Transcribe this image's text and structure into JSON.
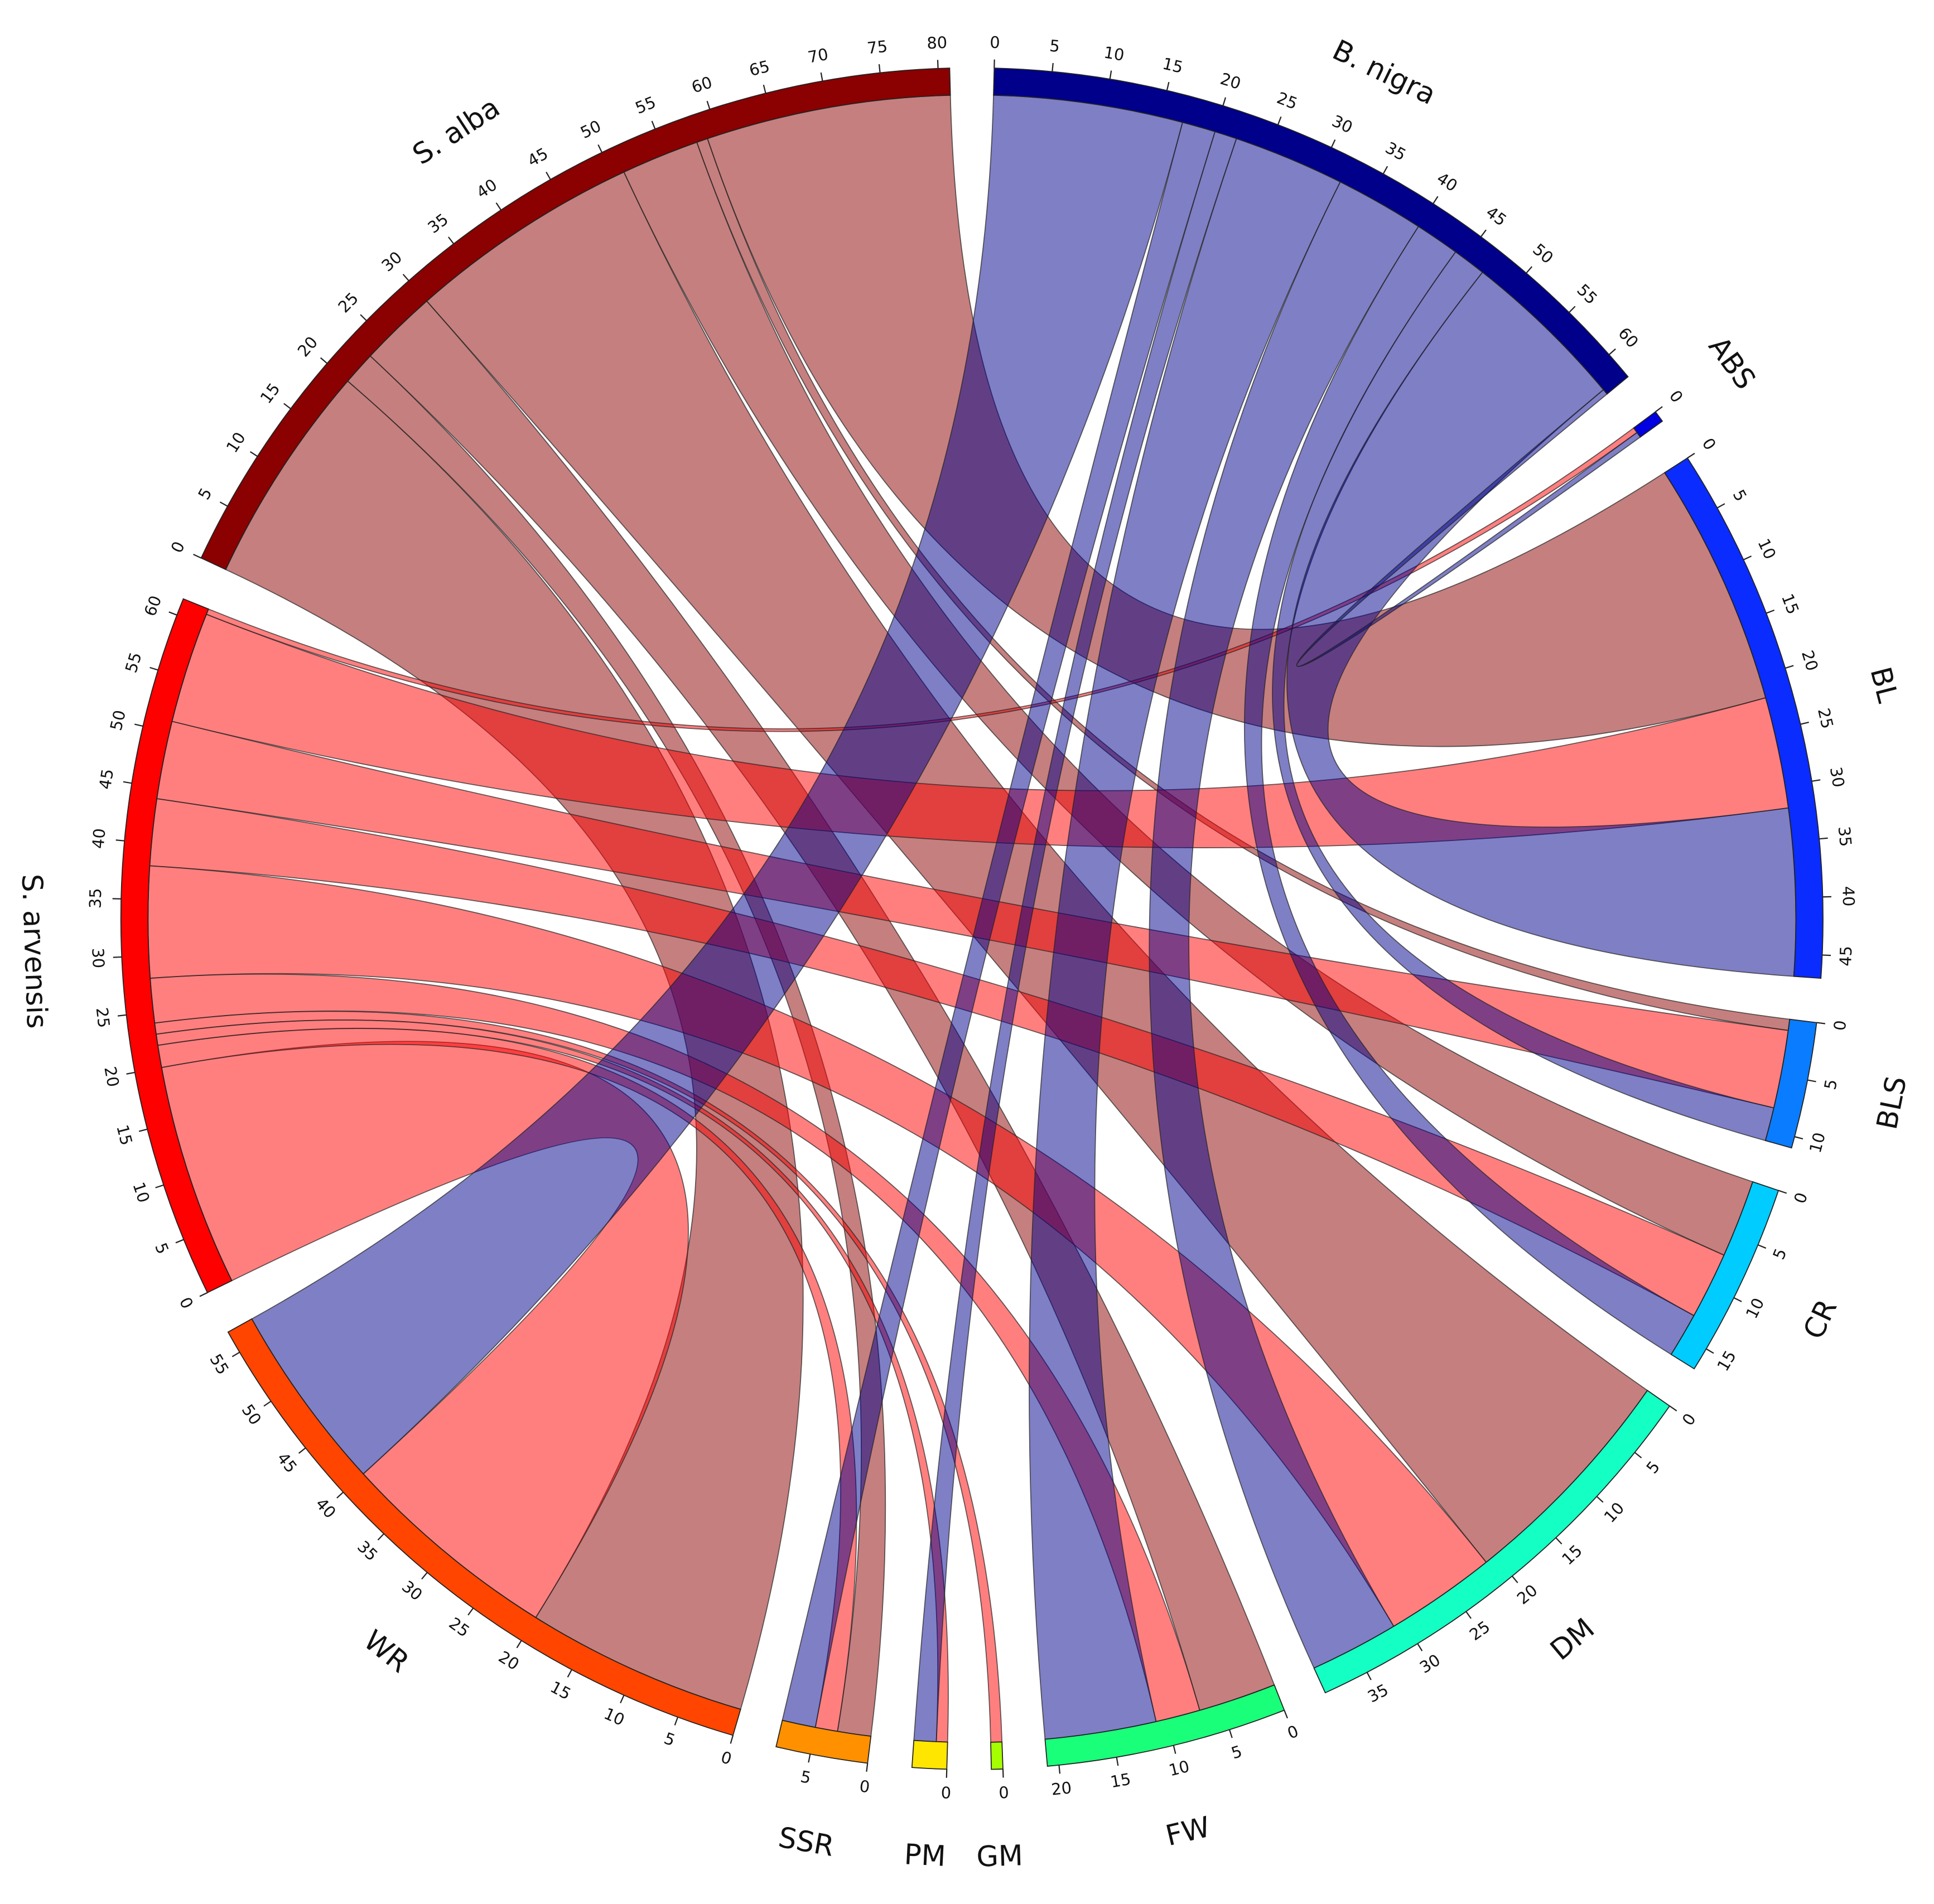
{
  "chart_data": {
    "type": "chord",
    "sectors": [
      {
        "name": "B. nigra",
        "color": "#00008b",
        "ticks": [
          0,
          5,
          10,
          15,
          20,
          25,
          30,
          35,
          40,
          45,
          50,
          55,
          60
        ]
      },
      {
        "name": "ABS",
        "color": "#0000e0",
        "ticks": [
          0
        ]
      },
      {
        "name": "BL",
        "color": "#0a2cff",
        "ticks": [
          0,
          5,
          10,
          15,
          20,
          25,
          30,
          35,
          40,
          45
        ]
      },
      {
        "name": "BLS",
        "color": "#0a7cff",
        "ticks": [
          0,
          5,
          10
        ]
      },
      {
        "name": "CR",
        "color": "#00ccff",
        "ticks": [
          0,
          5,
          10,
          15
        ]
      },
      {
        "name": "DM",
        "color": "#14ffc4",
        "ticks": [
          0,
          5,
          10,
          15,
          20,
          25,
          30,
          35
        ]
      },
      {
        "name": "FW",
        "color": "#1aff7a",
        "ticks": [
          0,
          5,
          10,
          15,
          20
        ]
      },
      {
        "name": "GM",
        "color": "#a6ff00",
        "ticks": [
          0
        ]
      },
      {
        "name": "PM",
        "color": "#ffe600",
        "ticks": [
          0
        ]
      },
      {
        "name": "SSR",
        "color": "#ff9000",
        "ticks": [
          0,
          5
        ]
      },
      {
        "name": "WR",
        "color": "#ff4500",
        "ticks": [
          0,
          5,
          10,
          15,
          20,
          25,
          30,
          35,
          40,
          45,
          50,
          55
        ]
      },
      {
        "name": "S. arvensis",
        "color": "#ff0000",
        "ticks": [
          0,
          5,
          10,
          15,
          20,
          25,
          30,
          35,
          40,
          45,
          50,
          55,
          60
        ]
      },
      {
        "name": "S. alba",
        "color": "#8b0000",
        "ticks": [
          0,
          5,
          10,
          15,
          20,
          25,
          30,
          35,
          40,
          45,
          50,
          55,
          60,
          65,
          70,
          75,
          80
        ]
      }
    ],
    "links": [
      {
        "source": "S. alba",
        "target": "WR",
        "value": 20
      },
      {
        "source": "S. alba",
        "target": "SSR",
        "value": 3
      },
      {
        "source": "S. alba",
        "target": "FW",
        "value": 7
      },
      {
        "source": "S. alba",
        "target": "DM",
        "value": 21
      },
      {
        "source": "S. alba",
        "target": "CR",
        "value": 7
      },
      {
        "source": "S. alba",
        "target": "BLS",
        "value": 1
      },
      {
        "source": "S. alba",
        "target": "BL",
        "value": 22
      },
      {
        "source": "S. arvensis",
        "target": "WR",
        "value": 20
      },
      {
        "source": "S. arvensis",
        "target": "SSR",
        "value": 2
      },
      {
        "source": "S. arvensis",
        "target": "PM",
        "value": 1
      },
      {
        "source": "S. arvensis",
        "target": "GM",
        "value": 1
      },
      {
        "source": "S. arvensis",
        "target": "FW",
        "value": 4
      },
      {
        "source": "S. arvensis",
        "target": "DM",
        "value": 10
      },
      {
        "source": "S. arvensis",
        "target": "CR",
        "value": 6
      },
      {
        "source": "S. arvensis",
        "target": "BLS",
        "value": 7
      },
      {
        "source": "S. arvensis",
        "target": "BL",
        "value": 10
      },
      {
        "source": "S. arvensis",
        "target": "ABS",
        "value": 0.5
      },
      {
        "source": "B. nigra",
        "target": "WR",
        "value": 17
      },
      {
        "source": "B. nigra",
        "target": "SSR",
        "value": 3
      },
      {
        "source": "B. nigra",
        "target": "PM",
        "value": 2
      },
      {
        "source": "B. nigra",
        "target": "FW",
        "value": 10
      },
      {
        "source": "B. nigra",
        "target": "DM",
        "value": 8
      },
      {
        "source": "B. nigra",
        "target": "CR",
        "value": 4
      },
      {
        "source": "B. nigra",
        "target": "BLS",
        "value": 3
      },
      {
        "source": "B. nigra",
        "target": "BL",
        "value": 15
      },
      {
        "source": "B. nigra",
        "target": "ABS",
        "value": 0.5
      }
    ]
  }
}
